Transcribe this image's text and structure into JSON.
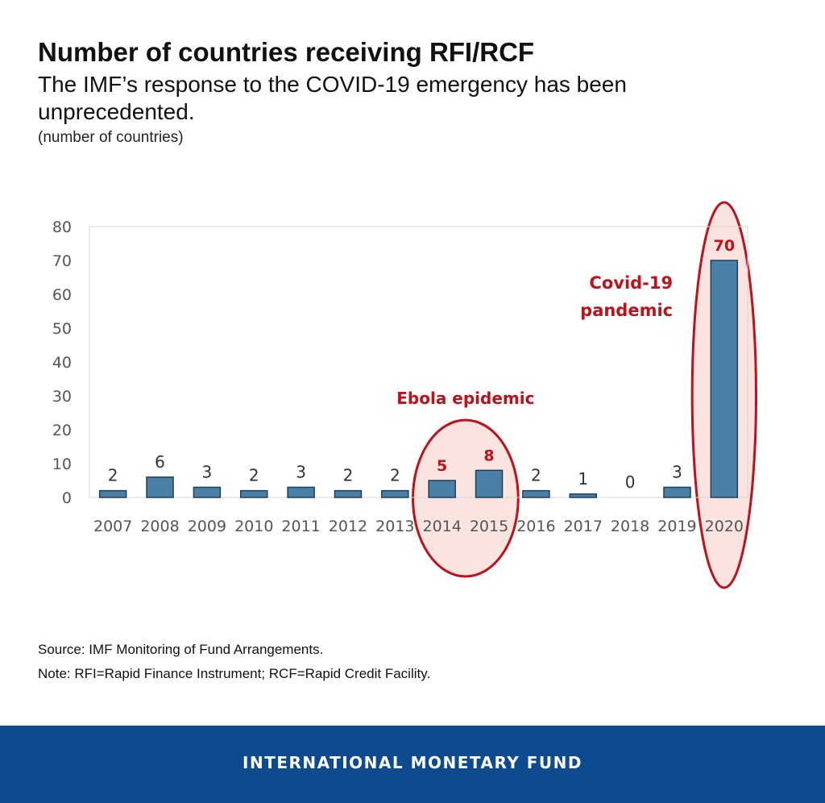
{
  "header": {
    "title": "Number of countries receiving RFI/RCF",
    "subtitle": "The IMF’s response to the COVID-19 emergency has been unprecedented.",
    "units": "(number of countries)"
  },
  "chart_data": {
    "type": "bar",
    "categories": [
      "2007",
      "2008",
      "2009",
      "2010",
      "2011",
      "2012",
      "2013",
      "2014",
      "2015",
      "2016",
      "2017",
      "2018",
      "2019",
      "2020"
    ],
    "values": [
      2,
      6,
      3,
      2,
      3,
      2,
      2,
      5,
      8,
      2,
      1,
      0,
      3,
      70
    ],
    "data_labels": [
      "2",
      "6",
      "3",
      "2",
      "3",
      "2",
      "2",
      "5",
      "8",
      "2",
      "1",
      "0",
      "3",
      "70"
    ],
    "highlighted_categories": [
      "2014",
      "2015",
      "2020"
    ],
    "ylim": [
      0,
      80
    ],
    "yticks": [
      0,
      10,
      20,
      30,
      40,
      50,
      60,
      70,
      80
    ],
    "grid": false,
    "annotations": [
      {
        "text": "Ebola epidemic",
        "categories": [
          "2014",
          "2015"
        ]
      },
      {
        "text": "Covid-19 pandemic",
        "categories": [
          "2020"
        ]
      }
    ],
    "colors": {
      "bar": "#4a7fa6",
      "bar_edge": "#1f3f5b",
      "highlight": "#c0101a",
      "highlight_fill": "#fbe3df",
      "axis_text": "#555555"
    }
  },
  "footnotes": {
    "source": "Source: IMF Monitoring of Fund Arrangements.",
    "note": "Note: RFI=Rapid Finance Instrument; RCF=Rapid Credit Facility."
  },
  "footer": {
    "org_name": "INTERNATIONAL MONETARY FUND",
    "color": "#0d4a8e"
  }
}
